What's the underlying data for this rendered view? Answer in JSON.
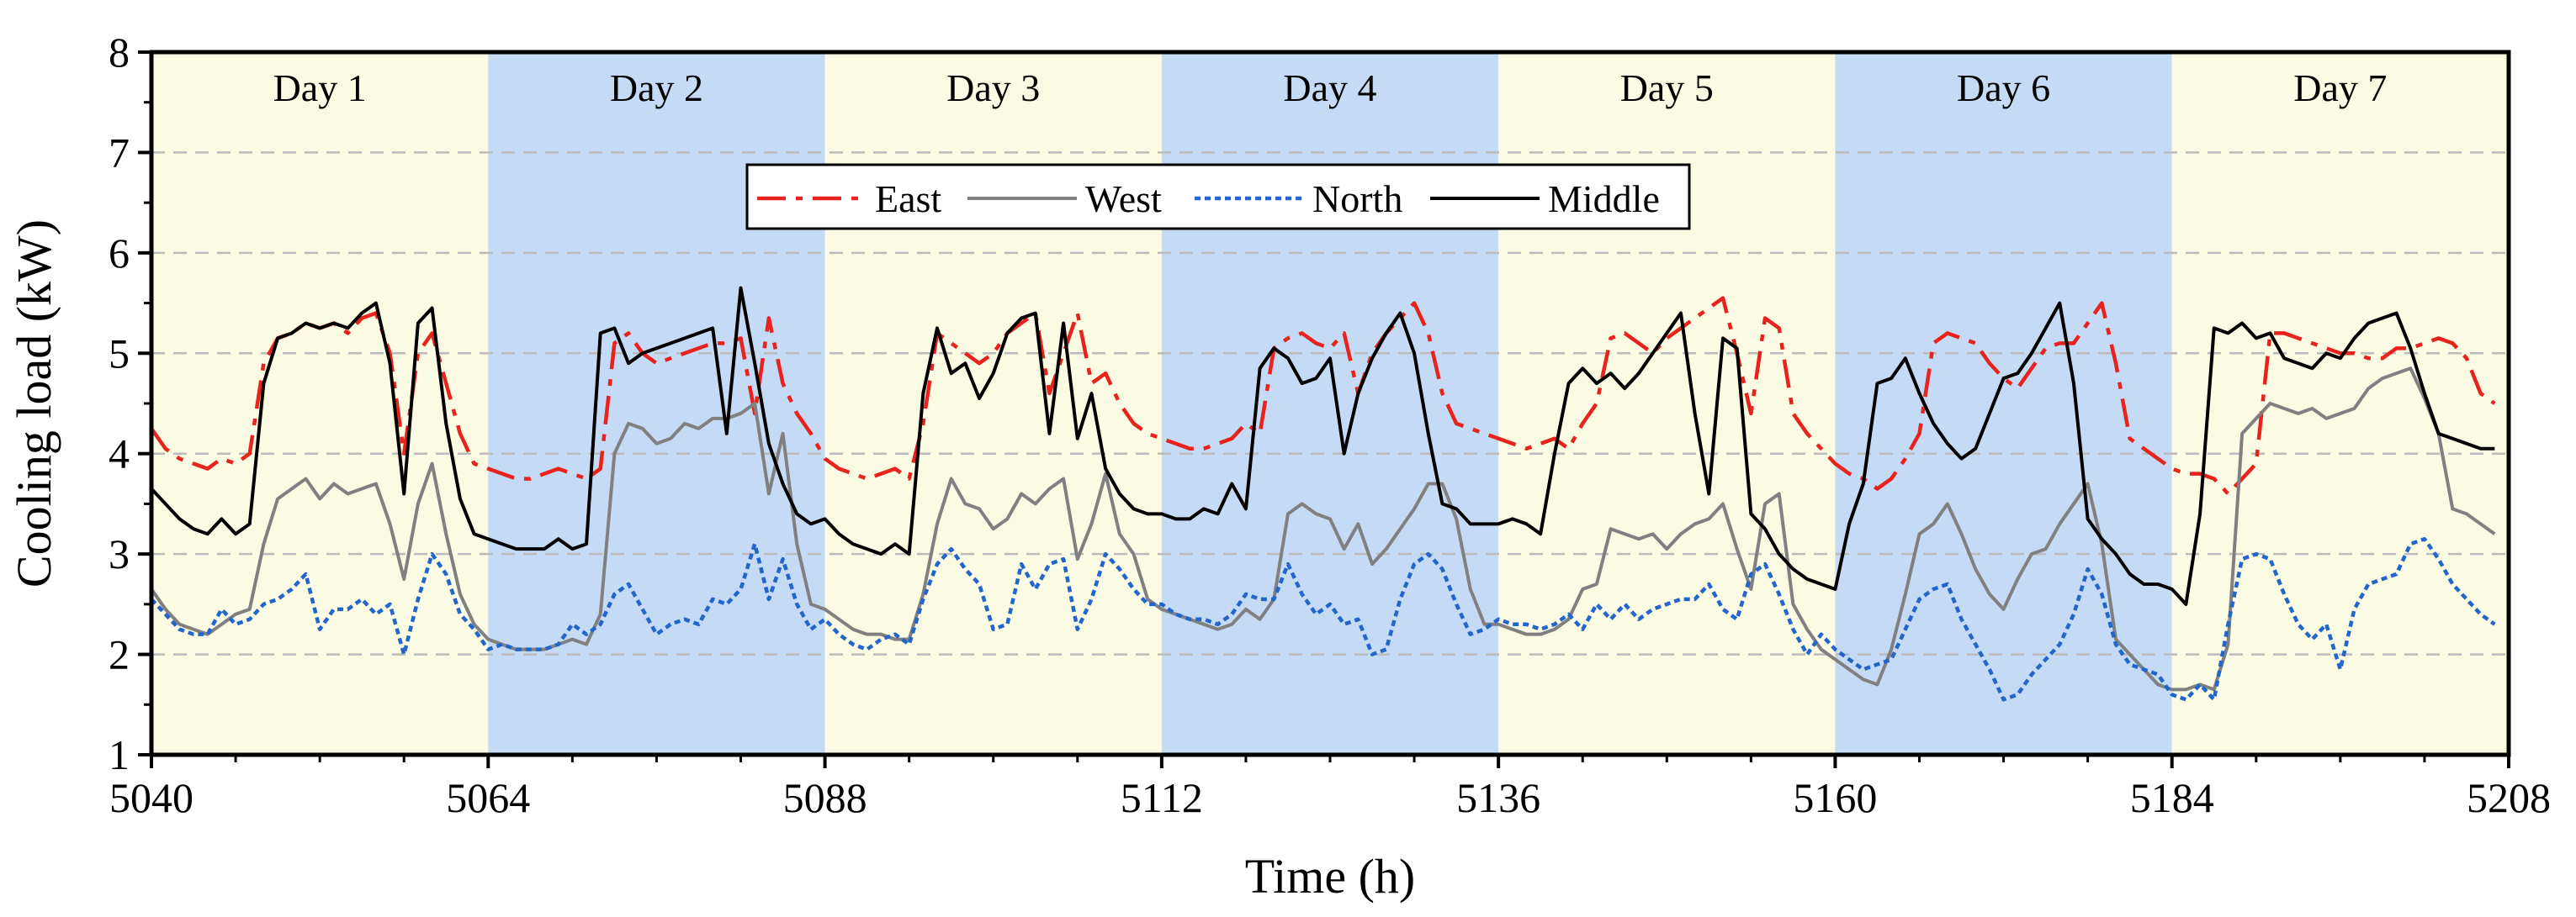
{
  "colors": {
    "day_odd": "#FBFBE3",
    "day_even": "#C5DBF5",
    "East": "#E8231E",
    "West": "#808080",
    "North": "#2266CC",
    "Middle": "#000000",
    "grid": "#BBBBBB"
  },
  "chart_data": {
    "type": "line",
    "xlabel": "Time (h)",
    "ylabel": "Cooling load (kW)",
    "xlim": [
      5040,
      5208
    ],
    "ylim": [
      1,
      8
    ],
    "xticks": [
      5040,
      5064,
      5088,
      5112,
      5136,
      5160,
      5184,
      5208
    ],
    "yticks": [
      1,
      2,
      3,
      4,
      5,
      6,
      7,
      8
    ],
    "grid": "horizontal dashed",
    "legend_position": "top-center",
    "bands": [
      {
        "label": "Day 1",
        "start": 5040,
        "end": 5064
      },
      {
        "label": "Day 2",
        "start": 5064,
        "end": 5088
      },
      {
        "label": "Day 3",
        "start": 5088,
        "end": 5112
      },
      {
        "label": "Day 4",
        "start": 5112,
        "end": 5136
      },
      {
        "label": "Day 5",
        "start": 5136,
        "end": 5160
      },
      {
        "label": "Day 6",
        "start": 5160,
        "end": 5184
      },
      {
        "label": "Day 7",
        "start": 5184,
        "end": 5208
      }
    ],
    "series": [
      {
        "name": "East",
        "style": "dashdot",
        "day_values": [
          [
            4.25,
            4.05,
            3.95,
            3.9,
            3.85,
            3.95,
            3.9,
            4.0,
            4.9,
            5.15,
            5.2,
            5.3,
            5.25,
            5.3,
            5.2,
            5.35,
            5.4,
            5.0,
            4.0,
            5.0,
            5.2,
            4.7,
            4.2,
            3.9
          ],
          [
            3.85,
            3.8,
            3.75,
            3.75,
            3.8,
            3.85,
            3.8,
            3.75,
            3.85,
            5.1,
            5.2,
            5.0,
            4.9,
            4.95,
            5.0,
            5.05,
            5.1,
            5.1,
            5.15,
            4.4,
            5.35,
            4.7,
            4.4,
            4.2
          ],
          [
            3.95,
            3.85,
            3.8,
            3.75,
            3.8,
            3.85,
            3.75,
            4.3,
            5.2,
            5.1,
            5.0,
            4.9,
            5.0,
            5.2,
            5.3,
            5.4,
            4.6,
            5.0,
            5.4,
            4.7,
            4.8,
            4.5,
            4.3,
            4.2
          ],
          [
            4.15,
            4.1,
            4.05,
            4.05,
            4.1,
            4.15,
            4.3,
            4.2,
            5.05,
            5.15,
            5.2,
            5.1,
            5.05,
            5.2,
            4.6,
            5.0,
            5.2,
            5.35,
            5.5,
            5.2,
            4.6,
            4.3,
            4.25,
            4.2
          ],
          [
            4.15,
            4.1,
            4.05,
            4.1,
            4.15,
            4.05,
            4.3,
            4.5,
            5.15,
            5.2,
            5.1,
            5.0,
            5.15,
            5.25,
            5.35,
            5.45,
            5.55,
            5.0,
            4.4,
            5.35,
            5.25,
            4.4,
            4.2,
            4.05
          ],
          [
            3.9,
            3.8,
            3.75,
            3.65,
            3.75,
            3.95,
            4.2,
            5.1,
            5.2,
            5.15,
            5.1,
            4.9,
            4.75,
            4.65,
            4.85,
            5.05,
            5.1,
            5.1,
            5.3,
            5.5,
            4.9,
            4.15,
            4.05,
            3.95
          ],
          [
            3.85,
            3.8,
            3.8,
            3.75,
            3.6,
            3.75,
            3.9,
            5.2,
            5.2,
            5.15,
            5.1,
            5.05,
            5.0,
            5.0,
            4.95,
            4.95,
            5.05,
            5.05,
            5.1,
            5.15,
            5.1,
            4.95,
            4.6,
            4.5
          ]
        ]
      },
      {
        "name": "West",
        "style": "solid",
        "day_values": [
          [
            2.65,
            2.45,
            2.3,
            2.25,
            2.2,
            2.3,
            2.4,
            2.45,
            3.1,
            3.55,
            3.65,
            3.75,
            3.55,
            3.7,
            3.6,
            3.65,
            3.7,
            3.3,
            2.75,
            3.5,
            3.9,
            3.2,
            2.6,
            2.3
          ],
          [
            2.15,
            2.1,
            2.05,
            2.05,
            2.05,
            2.1,
            2.15,
            2.1,
            2.4,
            4.0,
            4.3,
            4.25,
            4.1,
            4.15,
            4.3,
            4.25,
            4.35,
            4.35,
            4.4,
            4.5,
            3.6,
            4.2,
            3.1,
            2.5
          ],
          [
            2.45,
            2.35,
            2.25,
            2.2,
            2.2,
            2.15,
            2.15,
            2.6,
            3.3,
            3.75,
            3.5,
            3.45,
            3.25,
            3.35,
            3.6,
            3.5,
            3.65,
            3.75,
            2.95,
            3.3,
            3.8,
            3.2,
            3.0,
            2.55
          ],
          [
            2.45,
            2.4,
            2.35,
            2.3,
            2.25,
            2.3,
            2.45,
            2.35,
            2.55,
            3.4,
            3.5,
            3.4,
            3.35,
            3.05,
            3.3,
            2.9,
            3.05,
            3.25,
            3.45,
            3.7,
            3.7,
            3.35,
            2.65,
            2.3
          ],
          [
            2.3,
            2.25,
            2.2,
            2.2,
            2.25,
            2.35,
            2.65,
            2.7,
            3.25,
            3.2,
            3.15,
            3.2,
            3.05,
            3.2,
            3.3,
            3.35,
            3.5,
            3.05,
            2.65,
            3.5,
            3.6,
            2.5,
            2.25,
            2.05
          ],
          [
            1.95,
            1.85,
            1.75,
            1.7,
            2.05,
            2.6,
            3.2,
            3.3,
            3.5,
            3.2,
            2.85,
            2.6,
            2.45,
            2.75,
            3.0,
            3.05,
            3.3,
            3.5,
            3.7,
            3.1,
            2.15,
            2.0,
            1.85,
            1.7
          ],
          [
            1.65,
            1.65,
            1.7,
            1.65,
            2.1,
            4.2,
            4.35,
            4.5,
            4.45,
            4.4,
            4.45,
            4.35,
            4.4,
            4.45,
            4.65,
            4.75,
            4.8,
            4.85,
            4.55,
            4.2,
            3.45,
            3.4,
            3.3,
            3.2
          ]
        ]
      },
      {
        "name": "North",
        "style": "dotted",
        "day_values": [
          [
            2.55,
            2.4,
            2.25,
            2.2,
            2.2,
            2.45,
            2.3,
            2.35,
            2.5,
            2.55,
            2.65,
            2.8,
            2.25,
            2.45,
            2.45,
            2.55,
            2.4,
            2.5,
            2.0,
            2.55,
            3.0,
            2.8,
            2.4,
            2.25
          ],
          [
            2.05,
            2.1,
            2.05,
            2.05,
            2.05,
            2.1,
            2.3,
            2.2,
            2.3,
            2.6,
            2.7,
            2.45,
            2.2,
            2.3,
            2.35,
            2.3,
            2.55,
            2.5,
            2.65,
            3.1,
            2.55,
            2.95,
            2.5,
            2.25
          ],
          [
            2.35,
            2.2,
            2.1,
            2.05,
            2.15,
            2.2,
            2.1,
            2.55,
            2.9,
            3.05,
            2.85,
            2.7,
            2.25,
            2.3,
            2.9,
            2.65,
            2.9,
            2.95,
            2.25,
            2.55,
            3.0,
            2.85,
            2.65,
            2.5
          ],
          [
            2.5,
            2.4,
            2.35,
            2.35,
            2.3,
            2.4,
            2.6,
            2.55,
            2.55,
            2.9,
            2.6,
            2.4,
            2.5,
            2.3,
            2.35,
            2.0,
            2.05,
            2.55,
            2.9,
            3.0,
            2.85,
            2.5,
            2.2,
            2.25
          ],
          [
            2.35,
            2.3,
            2.3,
            2.25,
            2.3,
            2.4,
            2.25,
            2.5,
            2.35,
            2.5,
            2.35,
            2.45,
            2.5,
            2.55,
            2.55,
            2.7,
            2.45,
            2.35,
            2.8,
            2.9,
            2.6,
            2.25,
            2.0,
            2.2
          ],
          [
            2.05,
            1.95,
            1.85,
            1.9,
            1.95,
            2.25,
            2.55,
            2.65,
            2.7,
            2.35,
            2.1,
            1.85,
            1.55,
            1.6,
            1.8,
            1.95,
            2.1,
            2.4,
            2.85,
            2.6,
            2.1,
            1.9,
            1.85,
            1.8
          ],
          [
            1.6,
            1.55,
            1.7,
            1.55,
            2.3,
            2.95,
            3.0,
            2.95,
            2.6,
            2.3,
            2.15,
            2.3,
            1.85,
            2.45,
            2.7,
            2.75,
            2.8,
            3.1,
            3.15,
            2.95,
            2.7,
            2.55,
            2.4,
            2.3
          ]
        ]
      },
      {
        "name": "Middle",
        "style": "solid",
        "day_values": [
          [
            3.65,
            3.5,
            3.35,
            3.25,
            3.2,
            3.35,
            3.2,
            3.3,
            4.7,
            5.15,
            5.2,
            5.3,
            5.25,
            5.3,
            5.25,
            5.4,
            5.5,
            4.9,
            3.6,
            5.3,
            5.45,
            4.3,
            3.55,
            3.2
          ],
          [
            3.15,
            3.1,
            3.05,
            3.05,
            3.05,
            3.15,
            3.05,
            3.1,
            5.2,
            5.25,
            4.9,
            5.0,
            5.05,
            5.1,
            5.15,
            5.2,
            5.25,
            4.2,
            5.65,
            4.9,
            4.1,
            3.7,
            3.4,
            3.3
          ],
          [
            3.35,
            3.2,
            3.1,
            3.05,
            3.0,
            3.1,
            3.0,
            4.6,
            5.25,
            4.8,
            4.9,
            4.55,
            4.8,
            5.2,
            5.35,
            5.4,
            4.2,
            5.3,
            4.15,
            4.6,
            3.85,
            3.6,
            3.45,
            3.4
          ],
          [
            3.4,
            3.35,
            3.35,
            3.45,
            3.4,
            3.7,
            3.45,
            4.85,
            5.05,
            4.95,
            4.7,
            4.75,
            4.95,
            4.0,
            4.6,
            4.95,
            5.2,
            5.4,
            5.0,
            4.2,
            3.5,
            3.45,
            3.3,
            3.3
          ],
          [
            3.3,
            3.35,
            3.3,
            3.2,
            4.0,
            4.7,
            4.85,
            4.7,
            4.8,
            4.65,
            4.8,
            5.0,
            5.2,
            5.4,
            4.4,
            3.6,
            5.15,
            5.05,
            3.4,
            3.25,
            3.0,
            2.85,
            2.75,
            2.7
          ],
          [
            2.65,
            3.3,
            3.7,
            4.7,
            4.75,
            4.95,
            4.6,
            4.3,
            4.1,
            3.95,
            4.05,
            4.4,
            4.75,
            4.8,
            5.0,
            5.25,
            5.5,
            4.7,
            3.35,
            3.15,
            3.0,
            2.8,
            2.7,
            2.7
          ],
          [
            2.65,
            2.5,
            3.4,
            5.25,
            5.2,
            5.3,
            5.15,
            5.2,
            4.95,
            4.9,
            4.85,
            5.0,
            4.95,
            5.15,
            5.3,
            5.35,
            5.4,
            5.05,
            4.6,
            4.2,
            4.15,
            4.1,
            4.05,
            4.05
          ]
        ]
      }
    ]
  }
}
